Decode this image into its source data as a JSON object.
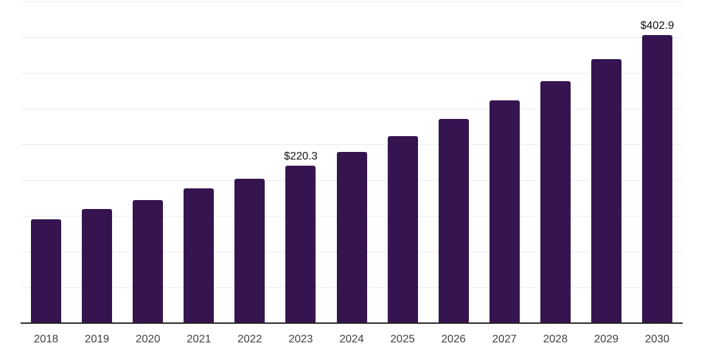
{
  "chart_data": {
    "type": "bar",
    "title": "",
    "categories": [
      "2018",
      "2019",
      "2020",
      "2021",
      "2022",
      "2023",
      "2024",
      "2025",
      "2026",
      "2027",
      "2028",
      "2029",
      "2030"
    ],
    "values": [
      145.5,
      159.8,
      172.0,
      188.0,
      202.4,
      220.3,
      239.8,
      261.6,
      285.4,
      311.1,
      338.2,
      369.3,
      402.9
    ],
    "data_labels": [
      {
        "category": "2023",
        "text": "$220.3"
      },
      {
        "category": "2030",
        "text": "$402.9"
      }
    ],
    "xlabel": "",
    "ylabel": "",
    "ylim": [
      0,
      450
    ],
    "grid_step": 50,
    "grid": "horizontal",
    "legend_position": "none",
    "colors": {
      "bar": "#361450",
      "grid": "#ececec",
      "axis": "#262626",
      "tick_label": "#404040",
      "value_label": "#111111",
      "background": "#ffffff"
    }
  }
}
